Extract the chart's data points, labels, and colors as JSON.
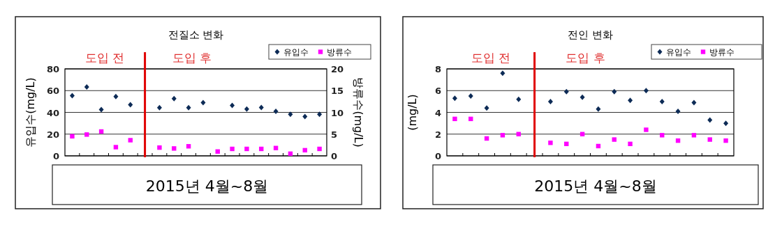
{
  "chart_data": [
    {
      "type": "scatter",
      "title": "전질소 변화",
      "ylabel": "유입수(mg/L)",
      "y2label": "방류수(mg/L)",
      "categories": [
        null,
        null,
        null,
        null,
        null,
        null,
        null,
        null,
        null,
        null,
        null,
        null,
        null,
        null,
        null,
        null,
        null,
        null
      ],
      "ylim": [
        0,
        80
      ],
      "yticks": [
        0,
        20,
        40,
        60,
        80
      ],
      "y2lim": [
        0,
        20
      ],
      "y2ticks": [
        0,
        5,
        10,
        15,
        20
      ],
      "grid": "y",
      "legend": "top right",
      "series": [
        {
          "name": "유입수",
          "color": "#0d2b56",
          "marker": "diamond",
          "values": [
            55.3,
            63.4,
            42.6,
            54.5,
            47,
            null,
            44.3,
            52.6,
            44.3,
            49,
            null,
            46.4,
            43,
            44.5,
            40.9,
            38.3,
            36.2,
            38.3
          ]
        },
        {
          "name": "방류수",
          "color": "#ff00ff",
          "marker": "square",
          "axis": "y2",
          "values": [
            4.5,
            4.9,
            5.6,
            2.0,
            3.6,
            null,
            1.9,
            1.7,
            2.2,
            null,
            1.0,
            1.6,
            1.6,
            1.6,
            1.8,
            0.5,
            1.3,
            1.6
          ]
        }
      ],
      "annotations": [
        "도입 전",
        "도입 후",
        "2015년 4월~8월"
      ]
    },
    {
      "type": "scatter",
      "title": "전인 변화",
      "ylabel": "(mg/L)",
      "categories": [
        null,
        null,
        null,
        null,
        null,
        null,
        null,
        null,
        null,
        null,
        null,
        null,
        null,
        null,
        null,
        null,
        null,
        null
      ],
      "ylim": [
        0,
        8
      ],
      "yticks": [
        0,
        2,
        4,
        6,
        8
      ],
      "grid": "y",
      "legend": "top right",
      "series": [
        {
          "name": "유입수",
          "color": "#0d2b56",
          "marker": "diamond",
          "values": [
            5.3,
            5.5,
            4.4,
            7.6,
            5.2,
            null,
            5.0,
            5.9,
            5.4,
            4.3,
            5.9,
            5.1,
            6.0,
            5.0,
            4.1,
            4.9,
            3.3,
            3.0
          ]
        },
        {
          "name": "방류수",
          "color": "#ff00ff",
          "marker": "square",
          "values": [
            3.4,
            3.4,
            1.6,
            1.9,
            2.0,
            null,
            1.2,
            1.1,
            2.0,
            0.9,
            1.5,
            1.1,
            2.4,
            1.9,
            1.4,
            1.9,
            1.5,
            1.4
          ]
        }
      ],
      "annotations": [
        "도입 전",
        "도입 후",
        "2015년 4월~8월"
      ]
    }
  ]
}
